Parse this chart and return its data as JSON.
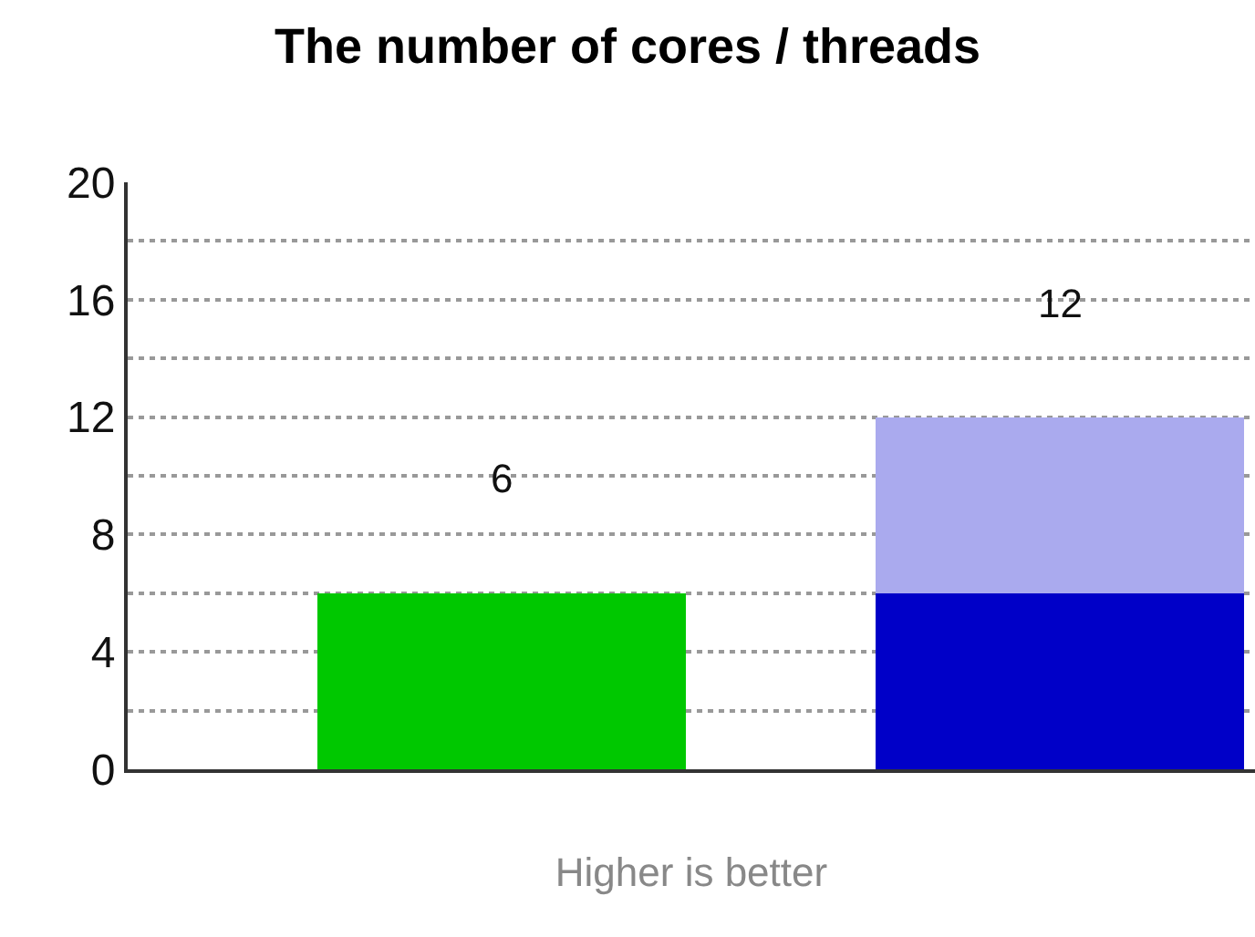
{
  "chart_data": {
    "type": "bar",
    "title": "The number of cores / threads",
    "xlabel": "Higher is better",
    "categories": [
      null,
      null
    ],
    "stacked": true,
    "series": [
      {
        "colors": [
          "#00c800",
          "#0000c8"
        ],
        "values": [
          6,
          6
        ]
      },
      {
        "color": "#aaaaee",
        "values": [
          null,
          6
        ]
      }
    ],
    "totals": [
      "6",
      "12"
    ],
    "ylim": [
      0,
      20
    ],
    "yticks": [
      0,
      {
        "value": 2,
        "label": null
      },
      4,
      {
        "value": 6,
        "label": null
      },
      8,
      {
        "value": 10,
        "label": null
      },
      12,
      {
        "value": 14,
        "label": null
      },
      16,
      {
        "value": 18,
        "label": null
      },
      20
    ],
    "grid": "y"
  }
}
